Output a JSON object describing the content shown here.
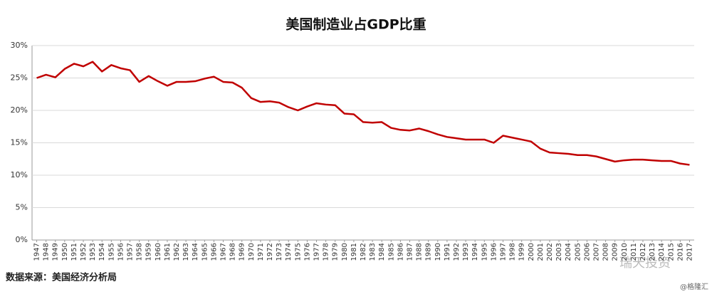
{
  "chart_data": {
    "type": "line",
    "title": "美国制造业占GDP比重",
    "categories": [
      "1947",
      "1948",
      "1949",
      "1950",
      "1951",
      "1952",
      "1953",
      "1954",
      "1955",
      "1956",
      "1957",
      "1958",
      "1959",
      "1960",
      "1961",
      "1962",
      "1963",
      "1964",
      "1965",
      "1966",
      "1967",
      "1968",
      "1969",
      "1970",
      "1971",
      "1972",
      "1973",
      "1974",
      "1975",
      "1976",
      "1977",
      "1978",
      "1979",
      "1980",
      "1981",
      "1982",
      "1983",
      "1984",
      "1985",
      "1986",
      "1987",
      "1988",
      "1989",
      "1990",
      "1991",
      "1992",
      "1993",
      "1994",
      "1995",
      "1996",
      "1997",
      "1998",
      "1999",
      "2000",
      "2001",
      "2002",
      "2003",
      "2004",
      "2005",
      "2006",
      "2007",
      "2008",
      "2009",
      "2010",
      "2011",
      "2012",
      "2013",
      "2014",
      "2015",
      "2016",
      "2017"
    ],
    "series": [
      {
        "name": "美国制造业占GDP比重",
        "color": "#c00000",
        "values": [
          25.0,
          25.5,
          25.1,
          26.4,
          27.2,
          26.8,
          27.5,
          26.0,
          27.0,
          26.5,
          26.2,
          24.4,
          25.3,
          24.5,
          23.8,
          24.4,
          24.4,
          24.5,
          24.9,
          25.2,
          24.4,
          24.3,
          23.5,
          21.9,
          21.3,
          21.4,
          21.2,
          20.5,
          20.0,
          20.6,
          21.1,
          20.9,
          20.8,
          19.5,
          19.4,
          18.2,
          18.1,
          18.2,
          17.3,
          17.0,
          16.9,
          17.2,
          16.8,
          16.3,
          15.9,
          15.7,
          15.5,
          15.5,
          15.5,
          15.0,
          16.1,
          15.8,
          15.5,
          15.2,
          14.1,
          13.5,
          13.4,
          13.3,
          13.1,
          13.1,
          12.9,
          12.5,
          12.1,
          12.3,
          12.4,
          12.4,
          12.3,
          12.2,
          12.2,
          11.8,
          11.6
        ]
      }
    ],
    "ylim": [
      0,
      30
    ],
    "yticks": [
      {
        "value": 0,
        "label": "0%"
      },
      {
        "value": 5,
        "label": "5%"
      },
      {
        "value": 10,
        "label": "10%"
      },
      {
        "value": 15,
        "label": "15%"
      },
      {
        "value": 20,
        "label": "20%"
      },
      {
        "value": 25,
        "label": "25%"
      },
      {
        "value": 30,
        "label": "30%"
      }
    ],
    "grid": true,
    "source": "数据来源：美国经济分析局",
    "watermark": "瑞天投资",
    "credit": "@格隆汇"
  }
}
